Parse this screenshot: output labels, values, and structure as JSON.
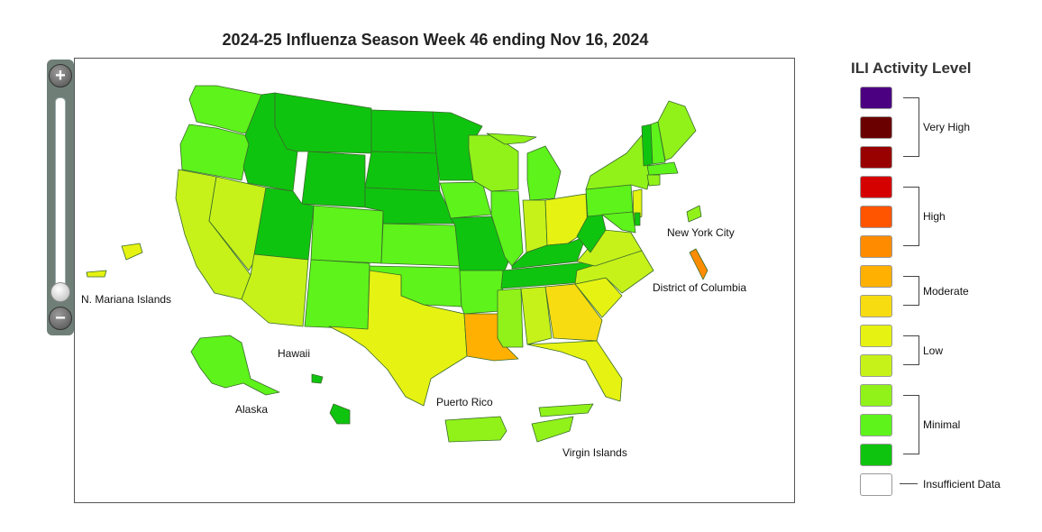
{
  "map_title": "2024-25 Influenza Season Week 46 ending Nov 16, 2024",
  "zoom": {
    "in_label": "+",
    "out_label": "−",
    "level": 0
  },
  "territory_labels": {
    "mariana": "N. Mariana Islands",
    "hawaii": "Hawaii",
    "alaska": "Alaska",
    "puerto_rico": "Puerto Rico",
    "virgin_islands": "Virgin Islands",
    "nyc": "New York City",
    "dc": "District of Columbia"
  },
  "legend": {
    "title": "ILI Activity Level",
    "swatches": [
      "#4b0082",
      "#6b0000",
      "#990000",
      "#d50000",
      "#ff5500",
      "#ff8c00",
      "#ffb000",
      "#f7dc11",
      "#e6f211",
      "#c6f21a",
      "#91f21a",
      "#5ef31b",
      "#0fc40f",
      "#ffffff"
    ],
    "labels": {
      "very_high": "Very High",
      "high": "High",
      "moderate": "Moderate",
      "low": "Low",
      "minimal": "Minimal",
      "insufficient": "Insufficient Data"
    }
  },
  "state_colors": {
    "minimal_dark": "#0fc40f",
    "minimal_mid": "#5ef31b",
    "minimal_light": "#91f21a",
    "low_light": "#c6f21a",
    "low": "#e6f211",
    "moderate_low": "#f7dc11",
    "moderate": "#ffb000",
    "high_low": "#ff8c00"
  }
}
